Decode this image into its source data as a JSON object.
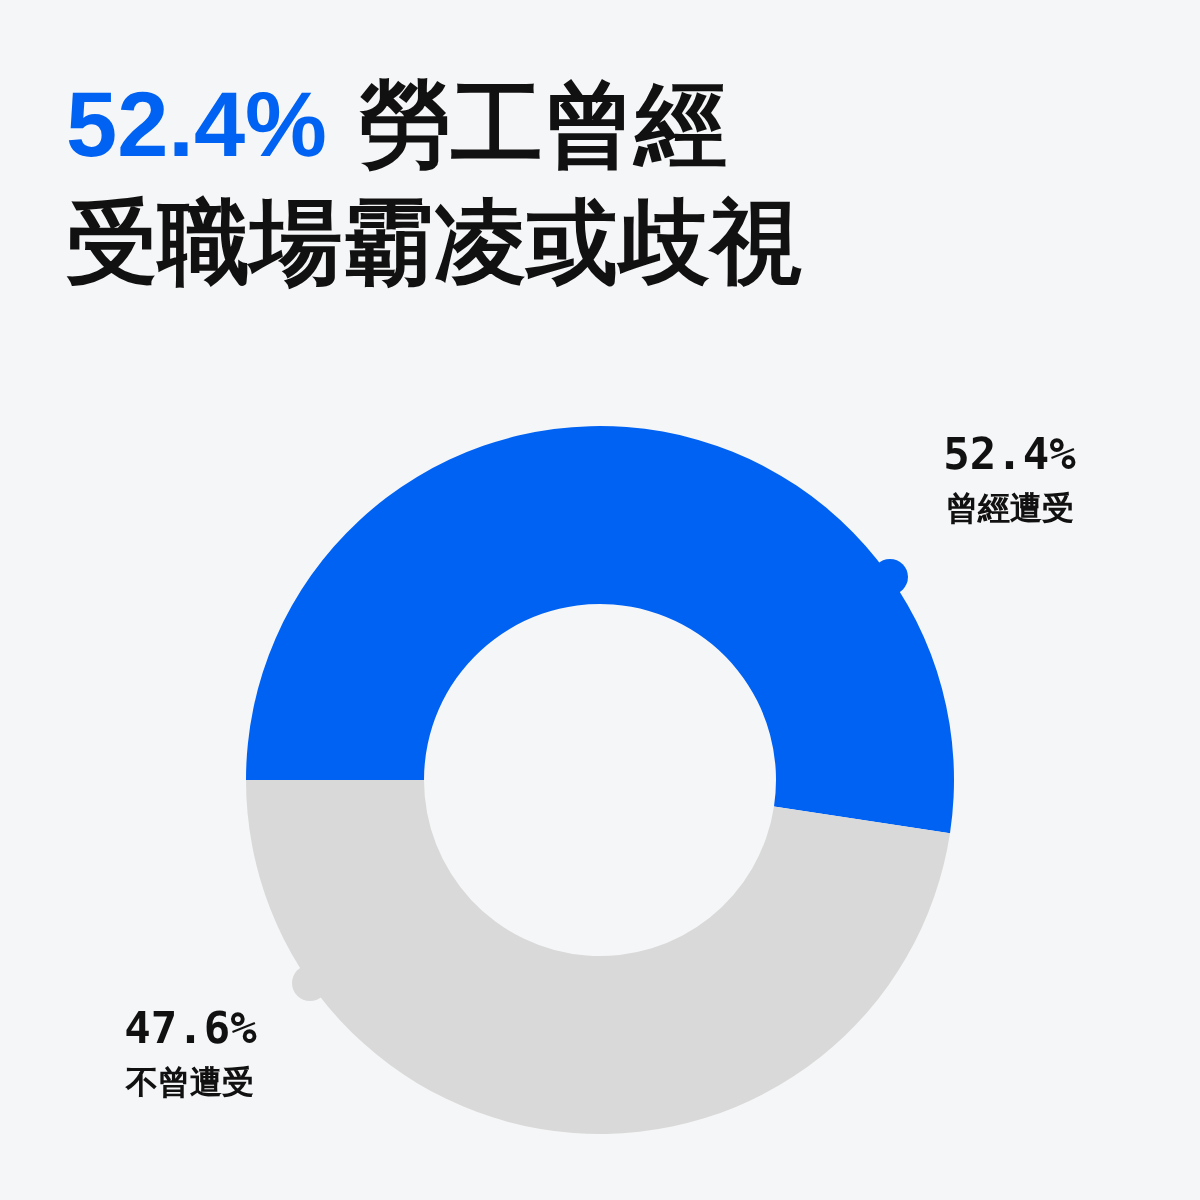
{
  "chart_data": {
    "type": "donut",
    "title": "52.4% 勞工曾經受職場霸凌或歧視",
    "categories": [
      "曾經遭受",
      "不曾遭受"
    ],
    "values": [
      52.4,
      47.6
    ],
    "colors": [
      "#0062f2",
      "#d9d9d9"
    ],
    "value_labels": [
      "52.4%",
      "47.6%"
    ]
  }
}
